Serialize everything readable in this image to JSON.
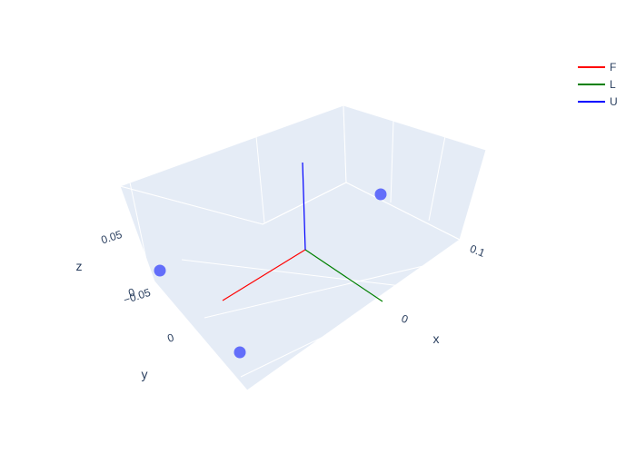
{
  "chart_data": {
    "type": "scatter3d",
    "title": "",
    "axes": {
      "x": {
        "label": "x",
        "tick_labels": [
          "0",
          "0.1"
        ]
      },
      "y": {
        "label": "y",
        "tick_labels": [
          "−0.05",
          "0"
        ]
      },
      "z": {
        "label": "z",
        "tick_labels": [
          "0",
          "0.05"
        ]
      }
    },
    "background_color": "#e5ecf6",
    "grid": true,
    "legend_position": "top-right",
    "series": [
      {
        "name": "F",
        "type": "line",
        "color": "#ff0000"
      },
      {
        "name": "L",
        "type": "line",
        "color": "#008000"
      },
      {
        "name": "U",
        "type": "line",
        "color": "#0000ff"
      },
      {
        "name": "",
        "type": "markers",
        "color": "#636efa",
        "count": 3
      }
    ]
  }
}
